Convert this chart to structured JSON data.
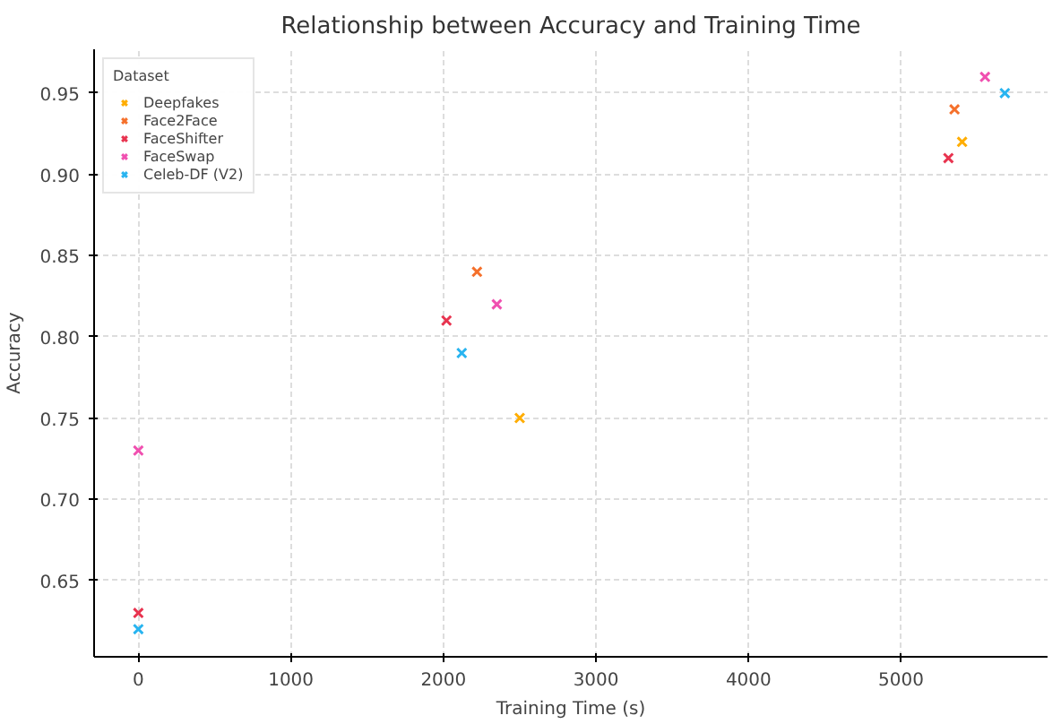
{
  "chart_data": {
    "type": "scatter",
    "title": "Relationship between Accuracy and Training Time",
    "xlabel": "Training Time (s)",
    "ylabel": "Accuracy",
    "legend_title": "Dataset",
    "legend": "top left",
    "grid": true,
    "marker": "cross",
    "xlim": [
      -290,
      5960
    ],
    "xticks": [
      0,
      1000,
      2000,
      3000,
      4000,
      5000
    ],
    "ylim": [
      0.603,
      0.977
    ],
    "yticks": [
      0.65,
      {
        "value": 0.7,
        "label": "0.70"
      },
      0.75,
      {
        "value": 0.8,
        "label": "0.80"
      },
      0.85,
      {
        "value": 0.9,
        "label": "0.90"
      },
      0.95
    ],
    "series": [
      {
        "name": "Deepfakes",
        "color": "#ffad00",
        "x": [
          2500,
          5400
        ],
        "values": [
          0.75,
          0.92
        ]
      },
      {
        "name": "Face2Face",
        "color": "#f5702b",
        "x": [
          2220,
          5350
        ],
        "values": [
          0.84,
          0.94
        ]
      },
      {
        "name": "FaceShifter",
        "color": "#e8334f",
        "x": [
          0,
          2020,
          5310
        ],
        "values": [
          0.63,
          0.81,
          0.91
        ]
      },
      {
        "name": "FaceSwap",
        "color": "#f050b0",
        "x": [
          0,
          2350,
          5550
        ],
        "values": [
          0.73,
          0.82,
          0.96
        ]
      },
      {
        "name": "Celeb-DF (V2)",
        "color": "#28b4f0",
        "x": [
          0,
          2120,
          5680
        ],
        "values": [
          0.62,
          0.79,
          0.95
        ]
      }
    ]
  }
}
